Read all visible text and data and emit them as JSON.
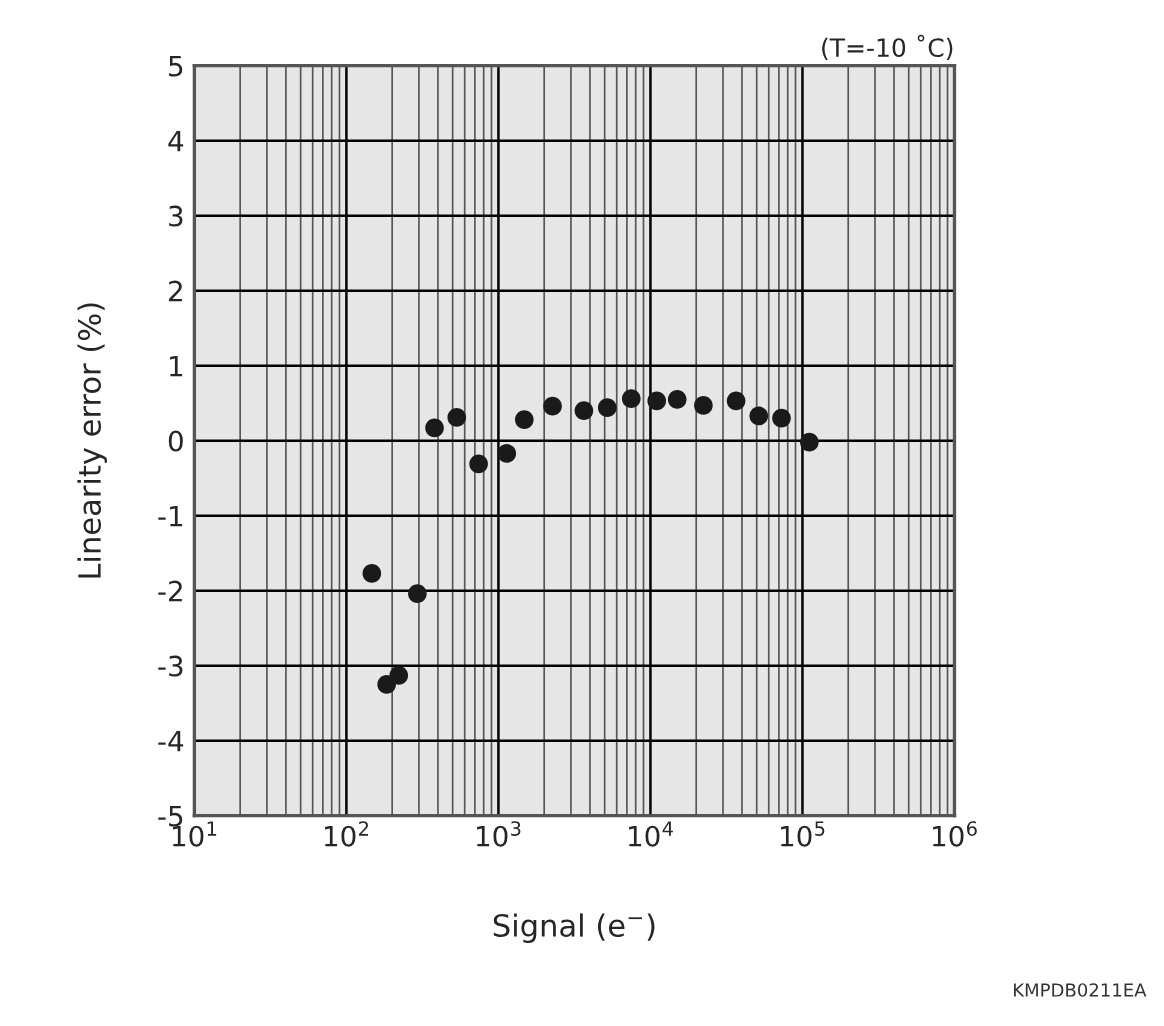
{
  "chart_data": {
    "type": "scatter",
    "xlabel": "Signal (e$^{−}$)",
    "ylabel": "Linearity error (%)",
    "annotations": [
      "(T=-10 ˚C)",
      "KMPDB0211EA"
    ],
    "log": "x",
    "grid": true,
    "marker": "circle",
    "xlim": [
      10,
      1000000
    ],
    "xticks": [
      {
        "value": 10,
        "label": "10$^{1}$"
      },
      {
        "value": 100,
        "label": "10$^{2}$"
      },
      {
        "value": 1000,
        "label": "10$^{3}$"
      },
      {
        "value": 10000,
        "label": "10$^{4}$"
      },
      {
        "value": 100000,
        "label": "10$^{5}$"
      },
      {
        "value": 1000000,
        "label": "10$^{6}$"
      }
    ],
    "ylim": [
      -5,
      5
    ],
    "yticks": [
      -5,
      -4,
      -3,
      -2,
      -1,
      0,
      1,
      2,
      3,
      4,
      5
    ],
    "series": [
      {
        "color": "#1a1a1a",
        "x": [
          147,
          184,
          221,
          293,
          380,
          532,
          741,
          1135,
          1480,
          2270,
          3650,
          5200,
          7480,
          11000,
          15000,
          22300,
          36600,
          51600,
          72800,
          111000
        ],
        "values": [
          -1.77,
          -3.25,
          -3.13,
          -2.04,
          0.17,
          0.31,
          -0.31,
          -0.17,
          0.28,
          0.46,
          0.4,
          0.44,
          0.56,
          0.53,
          0.55,
          0.47,
          0.53,
          0.33,
          0.3,
          -0.02
        ]
      }
    ]
  }
}
